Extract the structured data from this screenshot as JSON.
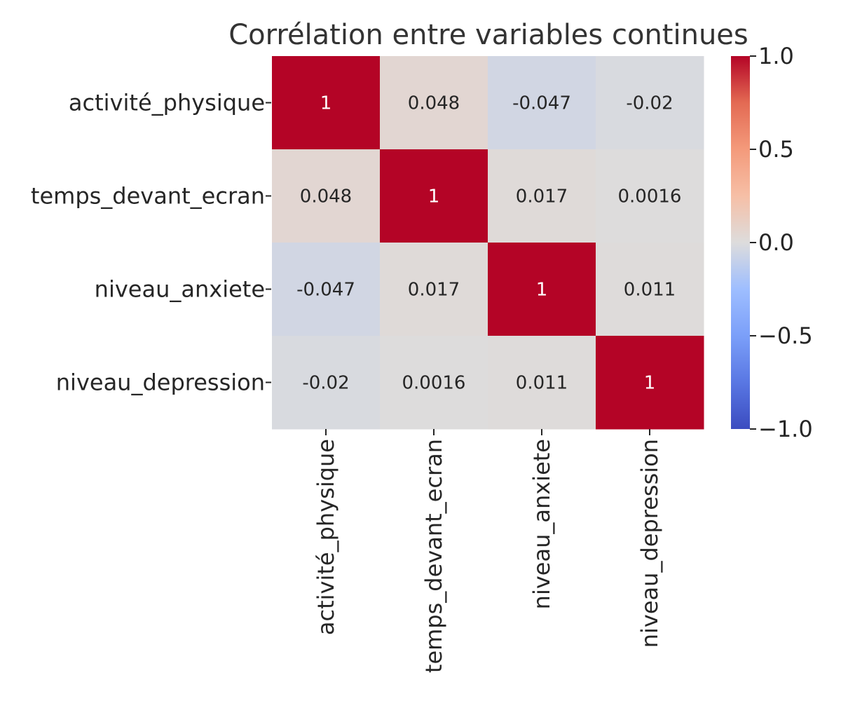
{
  "chart_data": {
    "type": "heatmap",
    "title": "Corrélation entre variables continues",
    "row_labels": [
      "activité_physique",
      "temps_devant_ecran",
      "niveau_anxiete",
      "niveau_depression"
    ],
    "col_labels": [
      "activité_physique",
      "temps_devant_ecran",
      "niveau_anxiete",
      "niveau_depression"
    ],
    "values": [
      [
        1,
        0.048,
        -0.047,
        -0.02
      ],
      [
        0.048,
        1,
        0.017,
        0.0016
      ],
      [
        -0.047,
        0.017,
        1,
        0.011
      ],
      [
        -0.02,
        0.0016,
        0.011,
        1
      ]
    ],
    "annotations": [
      [
        "1",
        "0.048",
        "-0.047",
        "-0.02"
      ],
      [
        "0.048",
        "1",
        "0.017",
        "0.0016"
      ],
      [
        "-0.047",
        "0.017",
        "1",
        "0.011"
      ],
      [
        "-0.02",
        "0.0016",
        "0.011",
        "1"
      ]
    ],
    "colormap": "coolwarm",
    "vmin": -1.0,
    "vmax": 1.0,
    "colorbar": {
      "ticks": [
        1.0,
        0.5,
        0.0,
        -0.5,
        -1.0
      ],
      "tick_labels": [
        "1.0",
        "0.5",
        "0.0",
        "−0.5",
        "−1.0"
      ]
    }
  }
}
